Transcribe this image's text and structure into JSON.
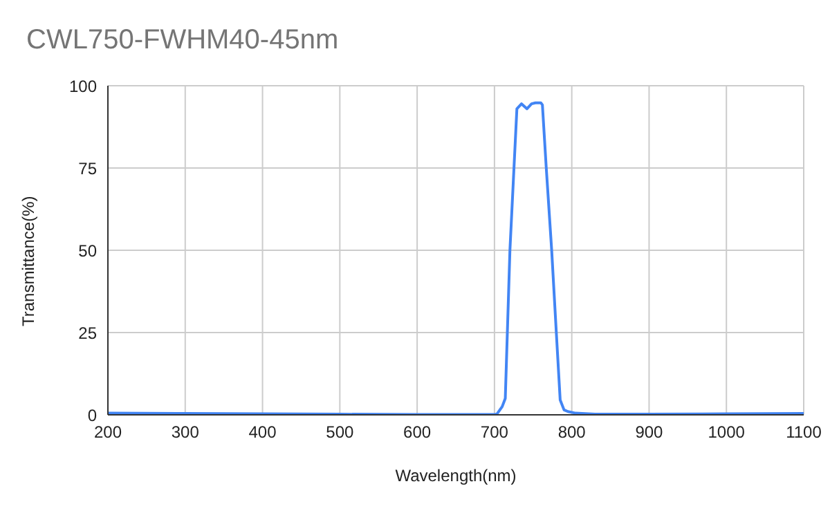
{
  "chart_data": {
    "type": "line",
    "title": "CWL750-FWHM40-45nm",
    "xlabel": "Wavelength(nm)",
    "ylabel": "Transmittance(%)",
    "x": [
      200,
      300,
      400,
      500,
      600,
      700,
      703,
      710,
      714,
      720,
      729,
      735,
      742,
      748,
      753,
      760,
      762,
      767,
      774,
      780,
      785,
      790,
      795,
      805,
      830,
      900,
      1000,
      1100
    ],
    "series": [
      {
        "color": "#4285f4",
        "values": [
          0.5,
          0.4,
          0.3,
          0.2,
          0.1,
          0.1,
          0.2,
          2.5,
          5,
          50,
          93,
          94.5,
          93,
          94.5,
          94.8,
          94.8,
          94.2,
          75,
          50,
          25,
          4.5,
          1.5,
          1,
          0.5,
          0.2,
          0.2,
          0.3,
          0.4
        ]
      }
    ],
    "xlim": [
      200,
      1100
    ],
    "xticks": [
      200,
      300,
      400,
      500,
      600,
      700,
      800,
      900,
      1000,
      1100
    ],
    "ylim": [
      0,
      100
    ],
    "yticks": [
      0,
      25,
      50,
      75,
      100
    ],
    "grid": true,
    "legend": false,
    "marker": "none",
    "line_style": "solid"
  }
}
